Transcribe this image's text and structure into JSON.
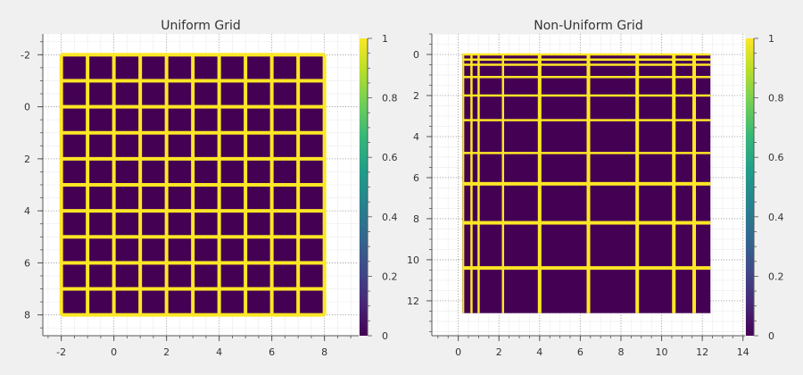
{
  "chart_data": [
    {
      "type": "heatmap",
      "title": "Uniform Grid",
      "xlim": [
        -2.7,
        9.3
      ],
      "ylim": [
        8.8,
        -2.8
      ],
      "x_ticks": [
        -2,
        0,
        2,
        4,
        6,
        8
      ],
      "y_ticks": [
        -2,
        0,
        2,
        4,
        6,
        8
      ],
      "x_lines": [
        -2,
        -1,
        0,
        1,
        2,
        3,
        4,
        5,
        6,
        7,
        8
      ],
      "y_lines": [
        -2,
        -1,
        0,
        1,
        2,
        3,
        4,
        5,
        6,
        7,
        8
      ],
      "cell_value": 0,
      "line_value": 1,
      "colorbar": {
        "colormap": "viridis",
        "range": [
          0,
          1
        ],
        "ticks": [
          "0",
          "0.2",
          "0.4",
          "0.6",
          "0.8",
          "1"
        ]
      },
      "grid": true
    },
    {
      "type": "heatmap",
      "title": "Non-Uniform Grid",
      "xlim": [
        -1.3,
        14.1
      ],
      "ylim": [
        13.7,
        -1.0
      ],
      "x_ticks": [
        0,
        2,
        4,
        6,
        8,
        10,
        12,
        14
      ],
      "y_ticks": [
        0,
        2,
        4,
        6,
        8,
        10,
        12
      ],
      "extent_x": [
        0.2,
        12.4
      ],
      "extent_y": [
        0.0,
        12.6
      ],
      "x_lines": [
        0.25,
        0.65,
        1.0,
        2.2,
        4.0,
        6.4,
        8.8,
        10.6,
        11.6
      ],
      "y_lines": [
        0.0,
        0.25,
        0.5,
        1.1,
        2.0,
        3.2,
        4.8,
        6.3,
        8.2,
        10.4
      ],
      "cell_value": 0,
      "line_value": 1,
      "colorbar": {
        "colormap": "viridis",
        "range": [
          0,
          1
        ],
        "ticks": [
          "0",
          "0.2",
          "0.4",
          "0.6",
          "0.8",
          "1"
        ]
      },
      "grid": true
    }
  ],
  "colors": {
    "cell": "#440154",
    "line": "#fde725",
    "viridis": [
      "#440154",
      "#472878",
      "#3e4a89",
      "#31688e",
      "#26838e",
      "#1f9e89",
      "#35b779",
      "#6ece58",
      "#b5de2b",
      "#fde725"
    ]
  }
}
